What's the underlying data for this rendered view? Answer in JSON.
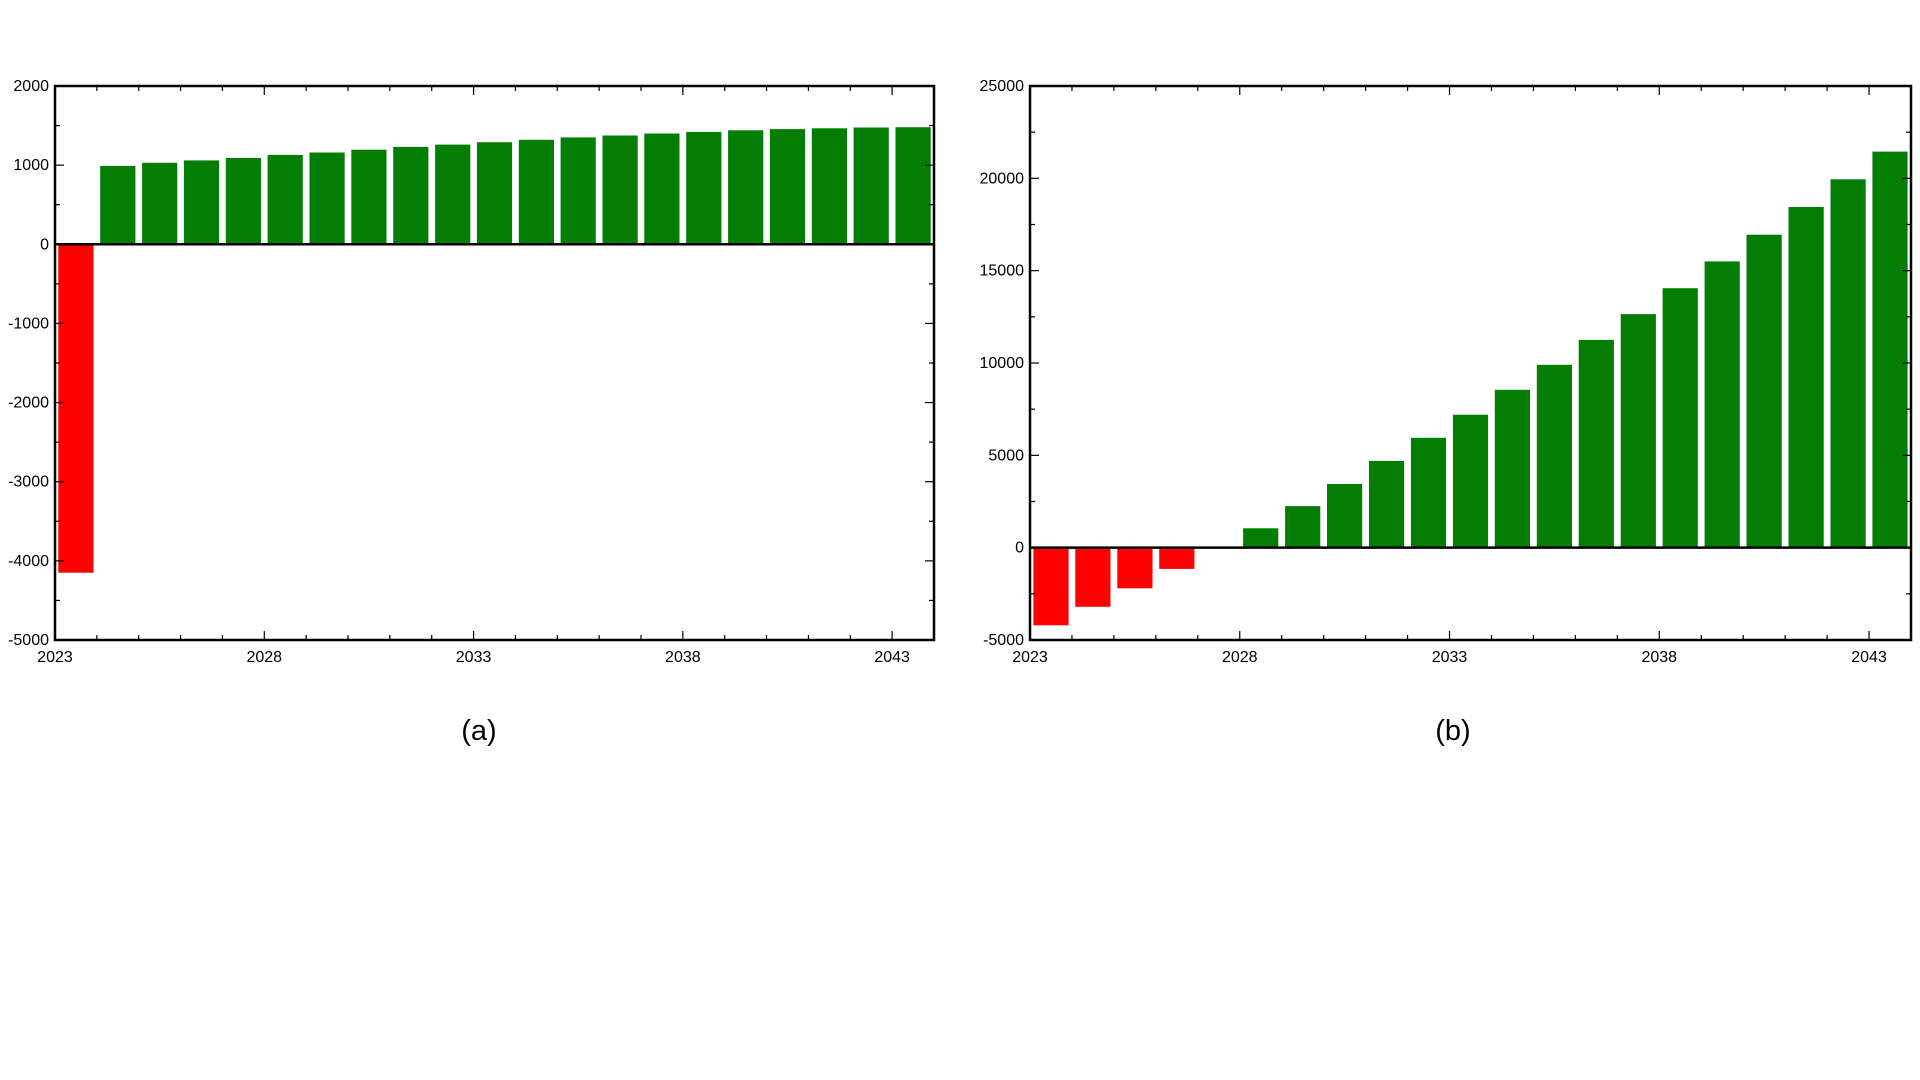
{
  "chart_data": [
    {
      "type": "bar",
      "caption": "(a)",
      "title": "",
      "xlabel": "",
      "ylabel": "",
      "x": [
        2023,
        2024,
        2025,
        2026,
        2027,
        2028,
        2029,
        2030,
        2031,
        2032,
        2033,
        2034,
        2035,
        2036,
        2037,
        2038,
        2039,
        2040,
        2041,
        2042,
        2043
      ],
      "values": [
        -4150,
        990,
        1030,
        1060,
        1090,
        1130,
        1160,
        1195,
        1230,
        1260,
        1290,
        1320,
        1350,
        1375,
        1400,
        1420,
        1440,
        1455,
        1465,
        1475,
        1480
      ],
      "xlim": [
        2023,
        2044
      ],
      "ylim": [
        -5000,
        2000
      ],
      "yticks": [
        -5000,
        -4000,
        -3000,
        -2000,
        -1000,
        0,
        1000,
        2000
      ],
      "xticks": [
        2023,
        2028,
        2033,
        2038,
        2043
      ],
      "colors": {
        "positive": "#047D04",
        "negative": "#FF0000"
      },
      "grid": false,
      "legend": "none"
    },
    {
      "type": "bar",
      "caption": "(b)",
      "title": "",
      "xlabel": "",
      "ylabel": "",
      "x": [
        2023,
        2024,
        2025,
        2026,
        2027,
        2028,
        2029,
        2030,
        2031,
        2032,
        2033,
        2034,
        2035,
        2036,
        2037,
        2038,
        2039,
        2040,
        2041,
        2042,
        2043
      ],
      "values": [
        -4200,
        -3200,
        -2200,
        -1150,
        0,
        1050,
        2250,
        3450,
        4700,
        5950,
        7200,
        8550,
        9900,
        11250,
        12650,
        14050,
        15500,
        16950,
        18450,
        19950,
        21450
      ],
      "xlim": [
        2023,
        2044
      ],
      "ylim": [
        -5000,
        25000
      ],
      "yticks": [
        -5000,
        0,
        5000,
        10000,
        15000,
        20000,
        25000
      ],
      "xticks": [
        2023,
        2028,
        2033,
        2038,
        2043
      ],
      "colors": {
        "positive": "#047D04",
        "negative": "#FF0000"
      },
      "grid": false,
      "legend": "none"
    }
  ]
}
